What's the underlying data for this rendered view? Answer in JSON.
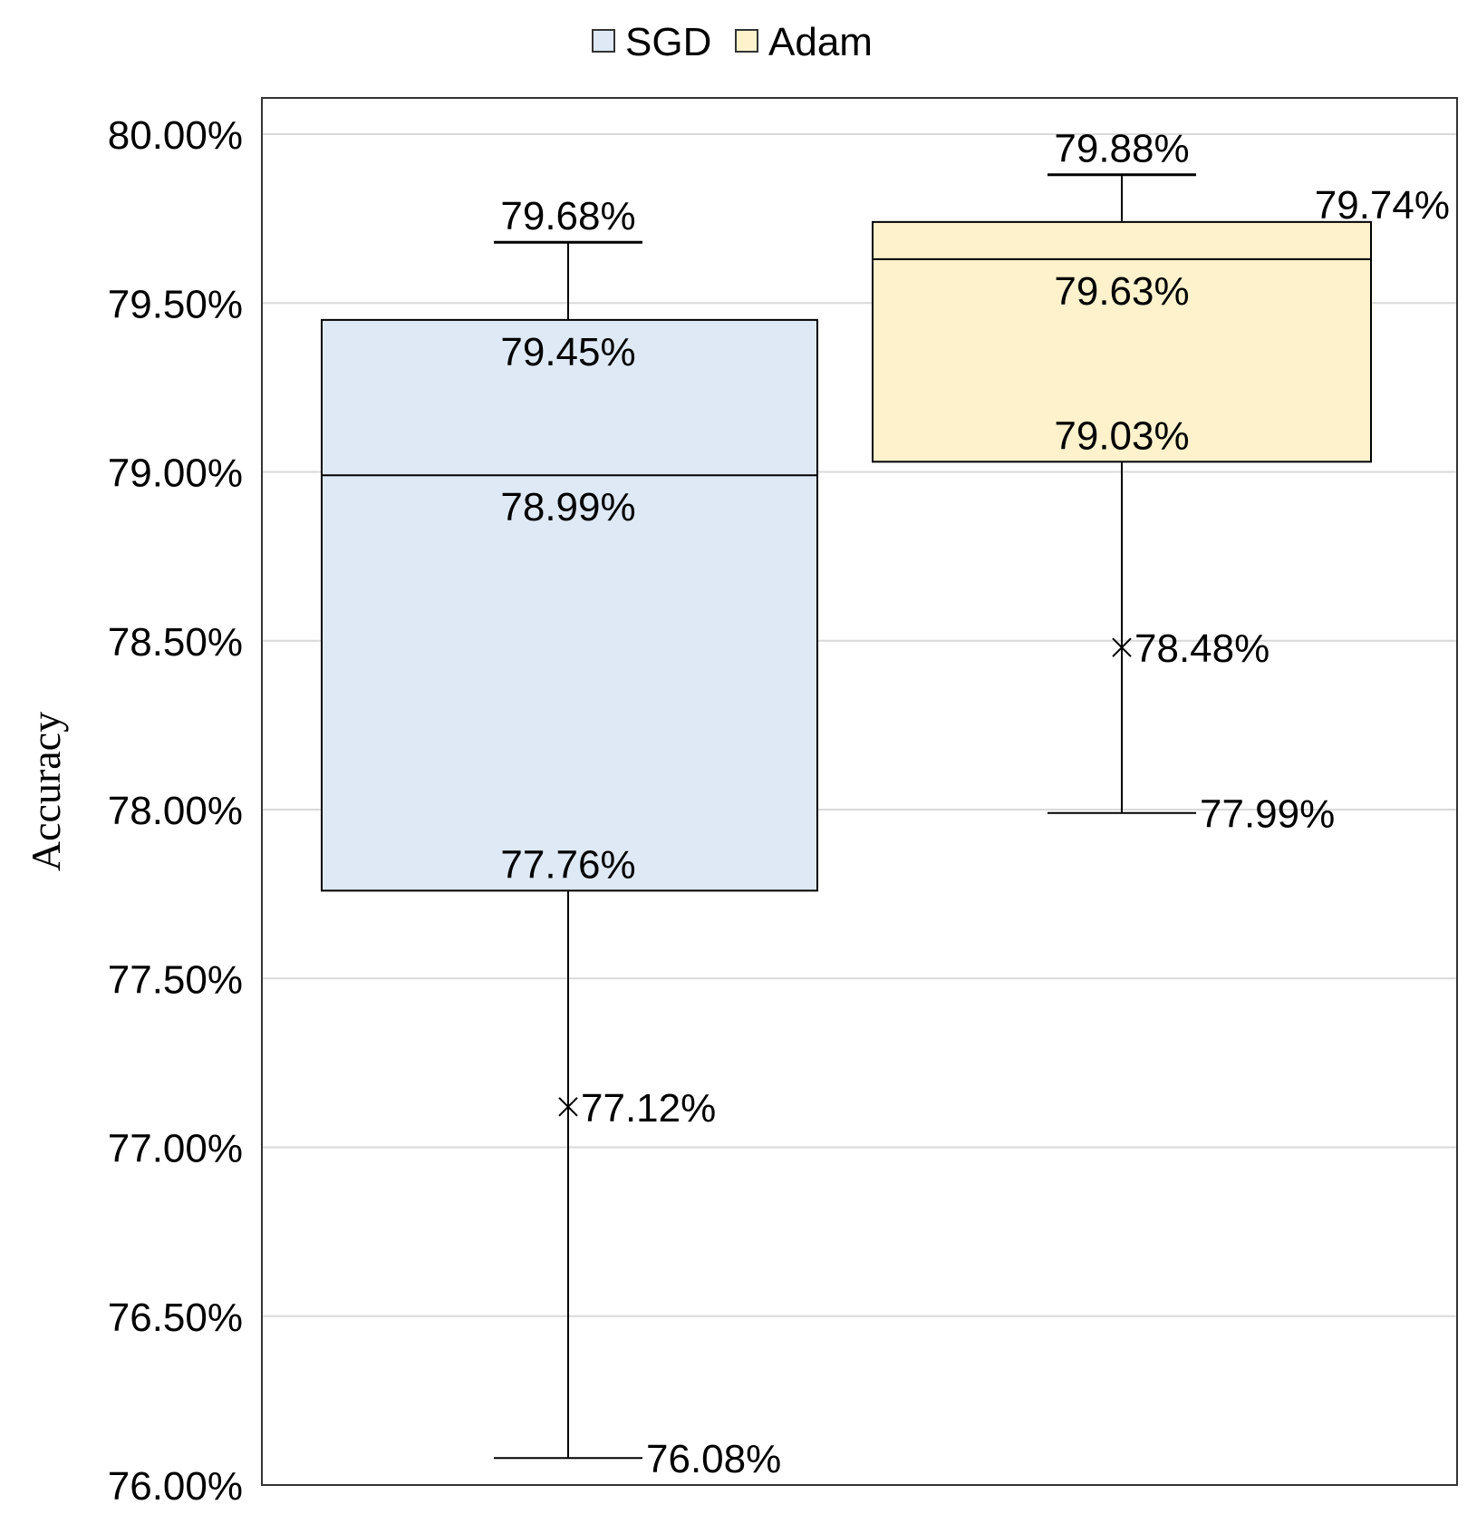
{
  "chart_data": {
    "type": "box",
    "ylabel": "Accuracy",
    "ylim": [
      76.0,
      80.0
    ],
    "y_ticks": [
      "76.00%",
      "76.50%",
      "77.00%",
      "77.50%",
      "78.00%",
      "78.50%",
      "79.00%",
      "79.50%",
      "80.00%"
    ],
    "y_tick_values": [
      76.0,
      76.5,
      77.0,
      77.5,
      78.0,
      78.5,
      79.0,
      79.5,
      80.0
    ],
    "grid": true,
    "legend_position": "top-center",
    "series": [
      {
        "name": "SGD",
        "color": "#dee9f5",
        "stats": {
          "min": 76.08,
          "q1": 77.76,
          "median": 78.99,
          "q3": 79.45,
          "max": 79.68,
          "mean": 77.12
        },
        "labels": {
          "min": "76.08%",
          "q1": "77.76%",
          "median": "78.99%",
          "q3": "79.45%",
          "max": "79.68%",
          "mean": "77.12%"
        }
      },
      {
        "name": "Adam",
        "color": "#fef2cd",
        "stats": {
          "min": 77.99,
          "q1": 79.03,
          "median": 79.63,
          "q3": 79.74,
          "max": 79.88,
          "mean": 78.48
        },
        "labels": {
          "min": "77.99%",
          "q1": "79.03%",
          "median": "79.63%",
          "q3": "79.74%",
          "max": "79.88%",
          "mean": "78.48%"
        }
      }
    ]
  }
}
